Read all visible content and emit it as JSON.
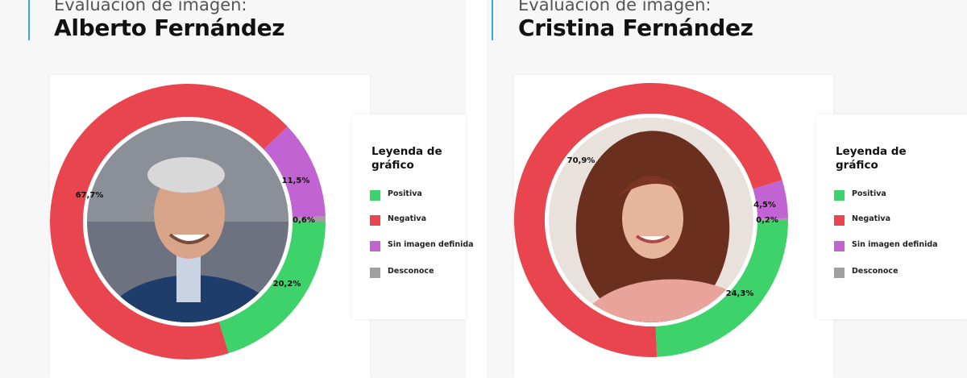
{
  "legend": {
    "title": "Leyenda de gráfico",
    "items": [
      {
        "key": "positiva",
        "label": "Positiva",
        "color": "#3dd36a"
      },
      {
        "key": "negativa",
        "label": "Negativa",
        "color": "#e8454f"
      },
      {
        "key": "sin_imagen",
        "label": "Sin imagen definida",
        "color": "#c263d3"
      },
      {
        "key": "desconoce",
        "label": "Desconoce",
        "color": "#a0a0a0"
      }
    ]
  },
  "panels": [
    {
      "subtitle": "Evaluación de imagen:",
      "title": "Alberto Fernández",
      "photo_icon": "portrait-photo-icon"
    },
    {
      "subtitle": "Evaluación de imagen:",
      "title": "Cristina Fernández",
      "photo_icon": "portrait-photo-icon"
    }
  ],
  "chart_data": [
    {
      "type": "pie",
      "variant": "donut",
      "slices": [
        {
          "key": "positiva",
          "value": 20.2,
          "label": "20,2%"
        },
        {
          "key": "negativa",
          "value": 67.7,
          "label": "67,7%"
        },
        {
          "key": "sin_imagen",
          "value": 11.5,
          "label": "11,5%"
        },
        {
          "key": "desconoce",
          "value": 0.6,
          "label": "0,6%"
        }
      ]
    },
    {
      "type": "pie",
      "variant": "donut",
      "slices": [
        {
          "key": "positiva",
          "value": 24.3,
          "label": "24,3%"
        },
        {
          "key": "negativa",
          "value": 70.9,
          "label": "70,9%"
        },
        {
          "key": "sin_imagen",
          "value": 4.5,
          "label": "4,5%"
        },
        {
          "key": "desconoce",
          "value": 0.2,
          "label": "0,2%"
        }
      ]
    }
  ]
}
